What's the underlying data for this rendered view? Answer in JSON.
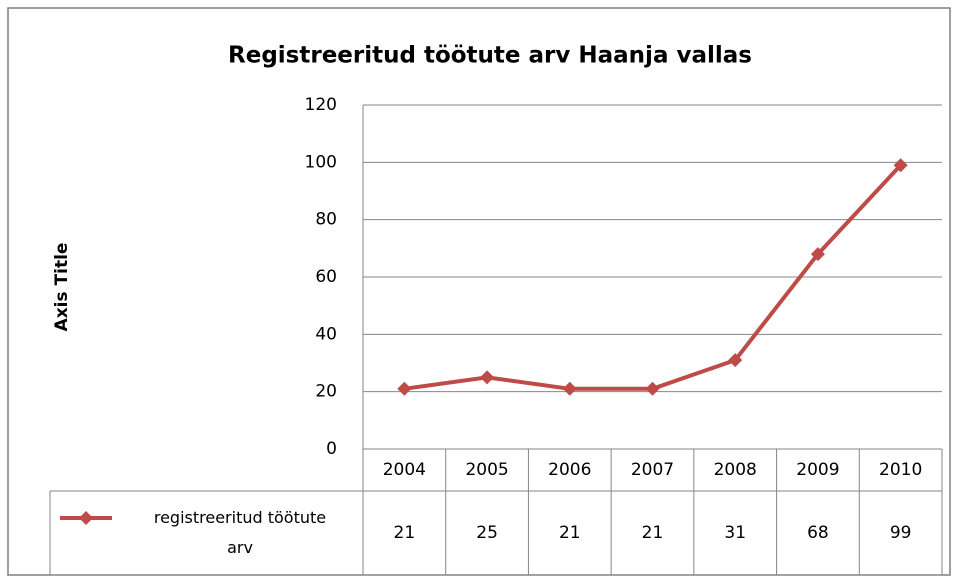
{
  "chart_data": {
    "type": "line",
    "title": "Registreeritud töötute arv Haanja vallas",
    "y_axis_label": "Axis Title",
    "categories": [
      "2004",
      "2005",
      "2006",
      "2007",
      "2008",
      "2009",
      "2010"
    ],
    "series": [
      {
        "name": "registreeritud töötute arv",
        "color": "#be4b48",
        "values": [
          21,
          25,
          21,
          21,
          31,
          68,
          99
        ]
      }
    ],
    "ylim": [
      0,
      120
    ],
    "yticks": [
      0,
      20,
      40,
      60,
      80,
      100,
      120
    ],
    "grid": true,
    "data_table": true
  }
}
